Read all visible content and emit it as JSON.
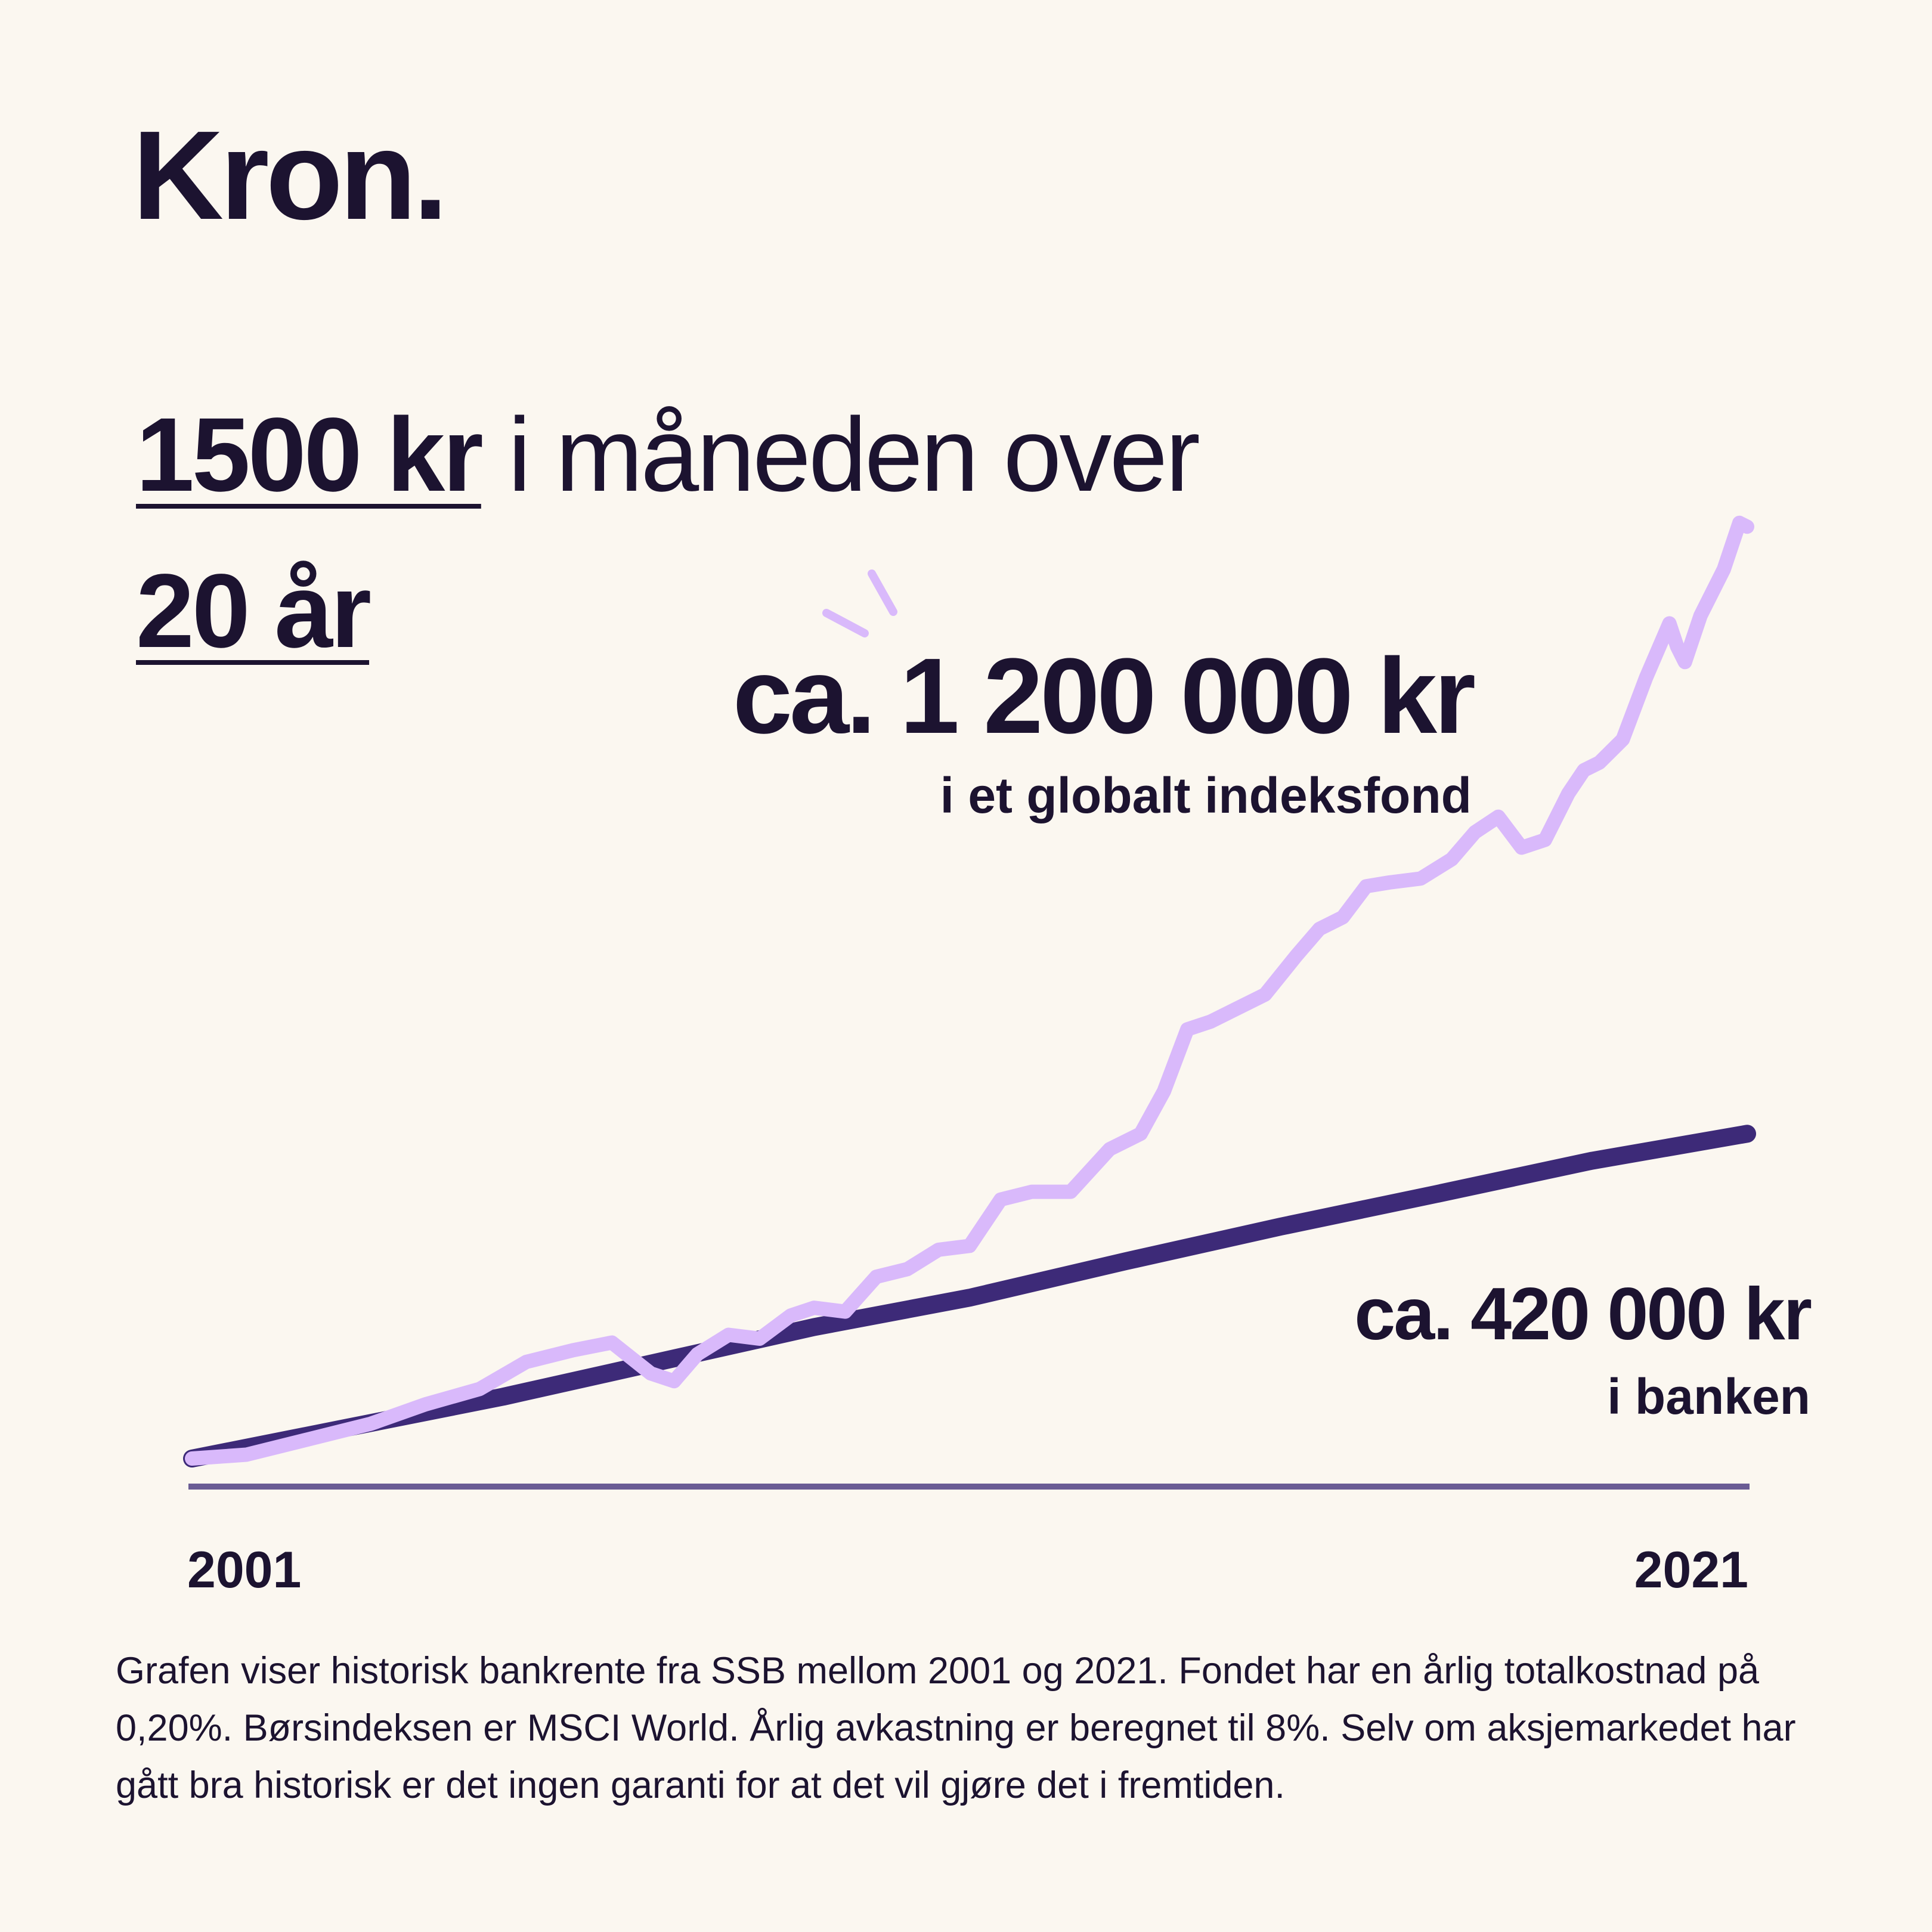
{
  "brand": {
    "logo_text": "Kron."
  },
  "headline": {
    "amount": "1500 kr",
    "middle": " i måneden over",
    "period": "20 år"
  },
  "annotations": {
    "fund_value": "ca. 1 200 000 kr",
    "fund_desc": "i et globalt indeksfond",
    "bank_value": "ca. 420 000 kr",
    "bank_desc": "i banken"
  },
  "colors": {
    "background": "#fbf7f0",
    "text": "#1c1330",
    "fund_line": "#d9b9fb",
    "bank_line": "#3d2a78",
    "axis": "#6a5c94"
  },
  "footnote": "Grafen viser historisk bankrente fra SSB mellom 2001 og 2021. Fondet har en årlig totalkostnad på 0,20%. Børsindeksen er MSCI World. Årlig avkastning er beregnet til 8%. Selv om aksjemarkedet har gått bra historisk er det ingen garanti for at det vil gjøre det i fremtiden.",
  "chart_data": {
    "type": "line",
    "x_tick_labels": [
      "2001",
      "2021"
    ],
    "xlim": [
      2001,
      2021
    ],
    "ylim": [
      0,
      1260000
    ],
    "grid": false,
    "series": [
      {
        "key": "fund",
        "color": "#d9b9fb",
        "x": [
          2001.0,
          2001.7,
          2002.5,
          2003.3,
          2004.0,
          2004.7,
          2005.3,
          2005.9,
          2006.4,
          2006.9,
          2007.2,
          2007.5,
          2007.9,
          2008.3,
          2008.7,
          2009.0,
          2009.4,
          2009.8,
          2010.2,
          2010.6,
          2011.0,
          2011.4,
          2011.8,
          2012.3,
          2012.8,
          2013.2,
          2013.5,
          2013.8,
          2014.1,
          2014.4,
          2014.8,
          2015.2,
          2015.5,
          2015.8,
          2016.1,
          2016.4,
          2016.8,
          2017.2,
          2017.5,
          2017.8,
          2018.1,
          2018.4,
          2018.7,
          2018.9,
          2019.1,
          2019.4,
          2019.7,
          2020.0,
          2020.1,
          2020.2,
          2020.4,
          2020.7,
          2020.9,
          2021.0
        ],
        "y": [
          0,
          5000,
          25000,
          45000,
          70000,
          90000,
          125000,
          140000,
          150000,
          110000,
          100000,
          135000,
          160000,
          155000,
          185000,
          195000,
          190000,
          235000,
          245000,
          270000,
          275000,
          335000,
          345000,
          345000,
          400000,
          420000,
          475000,
          555000,
          565000,
          580000,
          600000,
          650000,
          685000,
          700000,
          740000,
          745000,
          750000,
          775000,
          810000,
          830000,
          790000,
          800000,
          860000,
          890000,
          900000,
          930000,
          1010000,
          1080000,
          1050000,
          1030000,
          1090000,
          1150000,
          1210000,
          1205000
        ]
      },
      {
        "key": "bank",
        "color": "#3d2a78",
        "x": [
          2001,
          2003,
          2005,
          2007,
          2009,
          2011,
          2013,
          2015,
          2017,
          2019,
          2021
        ],
        "y": [
          0,
          40000,
          80000,
          125000,
          170000,
          208000,
          255000,
          300000,
          342000,
          385000,
          420000
        ]
      }
    ]
  }
}
